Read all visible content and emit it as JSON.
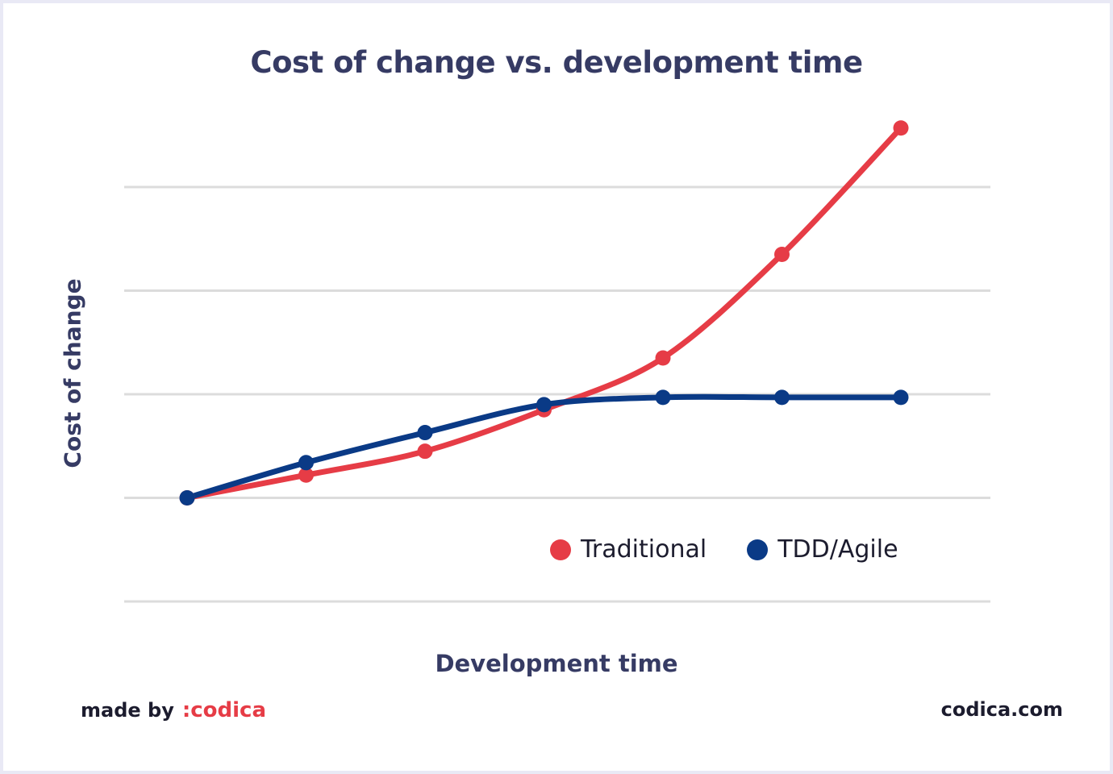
{
  "chart_data": {
    "type": "line",
    "title": "Cost of change vs. development time",
    "xlabel": "Development time",
    "ylabel": "Cost of change",
    "x": [
      1,
      2,
      3,
      4,
      5,
      6,
      7
    ],
    "ylim": [
      0,
      5
    ],
    "gridlines": [
      0,
      1,
      2,
      3,
      4
    ],
    "grid": true,
    "legend_position": "bottom-right",
    "series": [
      {
        "name": "Traditional",
        "color": "#e63c46",
        "x": [
          1,
          2,
          3,
          4,
          5,
          6,
          7
        ],
        "values": [
          1.0,
          1.22,
          1.45,
          1.85,
          2.35,
          3.35,
          4.57
        ]
      },
      {
        "name": "TDD/Agile",
        "color": "#0a3a86",
        "x": [
          1,
          2,
          3,
          4,
          5,
          6,
          7
        ],
        "values": [
          1.0,
          1.34,
          1.63,
          1.9,
          1.97,
          1.97,
          1.97
        ]
      }
    ]
  },
  "footer": {
    "made_by": "made by",
    "brand": ":codica",
    "site": "codica.com"
  },
  "colors": {
    "text": "#363b64",
    "grid": "#dcdcdc",
    "traditional": "#e63c46",
    "agile": "#0a3a86"
  }
}
